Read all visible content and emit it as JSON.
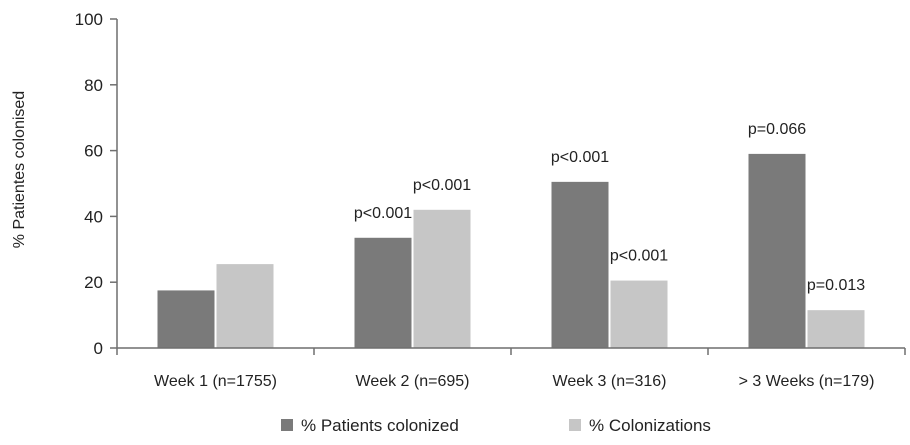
{
  "chart_data": {
    "type": "bar",
    "ylabel": "% Patientes colonised",
    "xlabel": "",
    "ylim": [
      0,
      100
    ],
    "yticks": [
      0,
      20,
      40,
      60,
      80,
      100
    ],
    "grid": false,
    "legend_position": "bottom",
    "categories": [
      "Week 1 (n=1755)",
      "Week 2 (n=695)",
      "Week 3 (n=316)",
      "> 3 Weeks (n=179)"
    ],
    "series": [
      {
        "name": "% Patients colonized",
        "color": "#7a7a7a",
        "values": [
          17.5,
          33.5,
          50.5,
          59
        ],
        "annotations": [
          "",
          "p<0.001",
          "p<0.001",
          "p=0.066"
        ]
      },
      {
        "name": "% Colonizations",
        "color": "#c6c6c6",
        "values": [
          25.5,
          42,
          20.5,
          11.5
        ],
        "annotations": [
          "",
          "p<0.001",
          "p<0.001",
          "p=0.013"
        ]
      }
    ]
  }
}
